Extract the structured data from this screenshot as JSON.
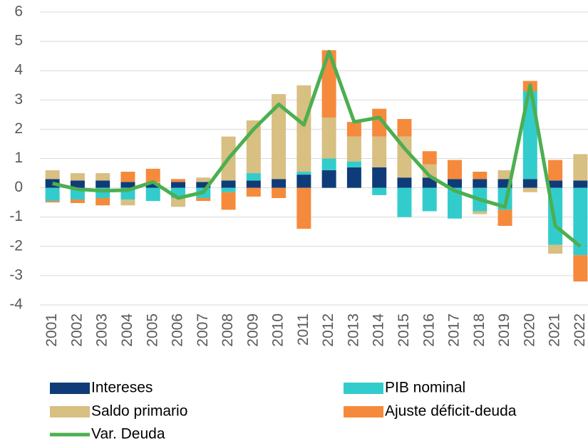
{
  "chart_data": {
    "type": "bar",
    "categories": [
      "2001",
      "2002",
      "2003",
      "2004",
      "2005",
      "2006",
      "2007",
      "2008",
      "2009",
      "2010",
      "2011",
      "2012",
      "2013",
      "2014",
      "2015",
      "2016",
      "2017",
      "2018",
      "2019",
      "2020",
      "2021",
      "2022"
    ],
    "series": [
      {
        "name": "Intereses",
        "color": "#0f3c78",
        "values": [
          0.3,
          0.25,
          0.25,
          0.2,
          0.15,
          0.2,
          0.2,
          0.25,
          0.25,
          0.3,
          0.45,
          0.6,
          0.7,
          0.7,
          0.35,
          0.35,
          0.3,
          0.3,
          0.3,
          0.3,
          0.25,
          0.25
        ]
      },
      {
        "name": "PIB nominal",
        "color": "#33cccc",
        "values": [
          -0.45,
          -0.4,
          -0.35,
          -0.4,
          -0.45,
          -0.35,
          -0.35,
          -0.15,
          0.25,
          0,
          0.1,
          0.4,
          0.2,
          -0.25,
          -1.0,
          -0.8,
          -1.05,
          -0.8,
          -0.75,
          3.0,
          -1.95,
          -2.3
        ]
      },
      {
        "name": "Saldo primario",
        "color": "#d8bf82",
        "values": [
          0.3,
          0.25,
          0.25,
          -0.2,
          0.05,
          -0.3,
          0.15,
          1.5,
          1.8,
          2.9,
          2.95,
          1.4,
          0.85,
          1.05,
          1.4,
          0.45,
          0,
          -0.1,
          0.3,
          -0.15,
          -0.3,
          0.9
        ]
      },
      {
        "name": "Ajuste déficit-deuda",
        "color": "#f58a3c",
        "values": [
          -0.05,
          -0.12,
          -0.25,
          0.35,
          0.45,
          0.1,
          -0.1,
          -0.6,
          -0.3,
          -0.35,
          -1.4,
          2.3,
          0.5,
          0.95,
          0.6,
          0.45,
          0.65,
          0.25,
          -0.55,
          0.35,
          0.7,
          -0.9
        ]
      },
      {
        "name": "Var. Deuda",
        "color": "#4caf50",
        "type": "line",
        "values": [
          0.15,
          -0.05,
          -0.1,
          -0.08,
          0.2,
          -0.35,
          -0.15,
          1.0,
          2.0,
          2.85,
          2.15,
          4.65,
          2.25,
          2.4,
          1.35,
          0.4,
          -0.1,
          -0.4,
          -0.65,
          3.5,
          -1.3,
          -2.0
        ]
      }
    ],
    "ylim": [
      -4,
      6
    ],
    "yticks": [
      -4,
      -3,
      -2,
      -1,
      0,
      1,
      2,
      3,
      4,
      5,
      6
    ],
    "grid": true
  }
}
